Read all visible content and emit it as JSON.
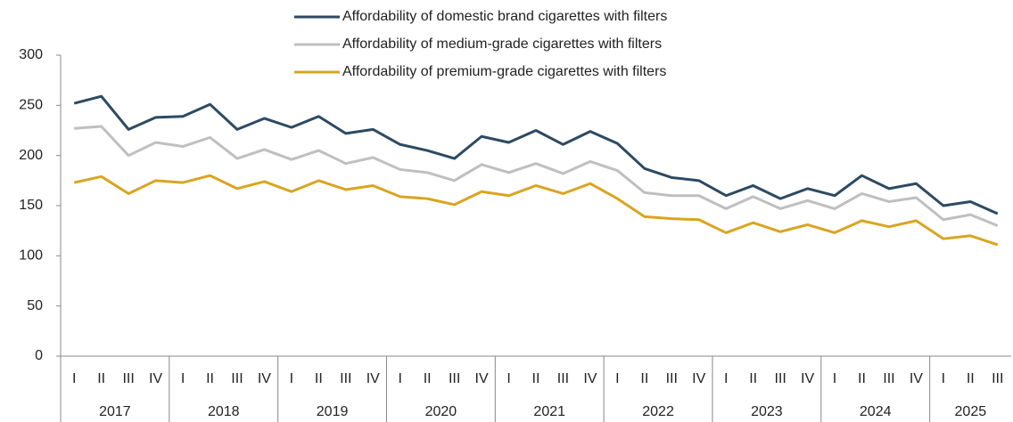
{
  "chart_data": {
    "type": "line",
    "groups": [
      {
        "label": "2017",
        "categories": [
          "I",
          "II",
          "III",
          "IV"
        ]
      },
      {
        "label": "2018",
        "categories": [
          "I",
          "II",
          "III",
          "IV"
        ]
      },
      {
        "label": "2019",
        "categories": [
          "I",
          "II",
          "III",
          "IV"
        ]
      },
      {
        "label": "2020",
        "categories": [
          "I",
          "II",
          "III",
          "IV"
        ]
      },
      {
        "label": "2021",
        "categories": [
          "I",
          "II",
          "III",
          "IV"
        ]
      },
      {
        "label": "2022",
        "categories": [
          "I",
          "II",
          "III",
          "IV"
        ]
      },
      {
        "label": "2023",
        "categories": [
          "I",
          "II",
          "III",
          "IV"
        ]
      },
      {
        "label": "2024",
        "categories": [
          "I",
          "II",
          "III",
          "IV"
        ]
      },
      {
        "label": "2025",
        "categories": [
          "I",
          "II",
          "III"
        ]
      }
    ],
    "series": [
      {
        "name": "Affordability of domestic brand cigarettes with filters",
        "color": "#2d4a62",
        "values": [
          252,
          259,
          226,
          238,
          239,
          251,
          226,
          237,
          228,
          239,
          222,
          226,
          211,
          205,
          197,
          219,
          213,
          225,
          211,
          224,
          212,
          187,
          178,
          175,
          160,
          170,
          157,
          167,
          160,
          180,
          167,
          172,
          150,
          154,
          142
        ]
      },
      {
        "name": "Affordability of medium-grade cigarettes with filters",
        "color": "#bfbfbf",
        "values": [
          227,
          229,
          200,
          213,
          209,
          218,
          197,
          206,
          196,
          205,
          192,
          198,
          186,
          183,
          175,
          191,
          183,
          192,
          182,
          194,
          185,
          163,
          160,
          160,
          147,
          159,
          147,
          155,
          147,
          162,
          154,
          158,
          136,
          141,
          130
        ]
      },
      {
        "name": "Affordability of premium-grade cigarettes with filters",
        "color": "#d9a521",
        "values": [
          173,
          179,
          162,
          175,
          173,
          180,
          167,
          174,
          164,
          175,
          166,
          170,
          159,
          157,
          151,
          164,
          160,
          170,
          162,
          172,
          157,
          139,
          137,
          136,
          123,
          133,
          124,
          131,
          123,
          135,
          129,
          135,
          117,
          120,
          111
        ]
      }
    ],
    "ylim": [
      0,
      300
    ],
    "yticks": [
      0,
      50,
      100,
      150,
      200,
      250,
      300
    ]
  }
}
